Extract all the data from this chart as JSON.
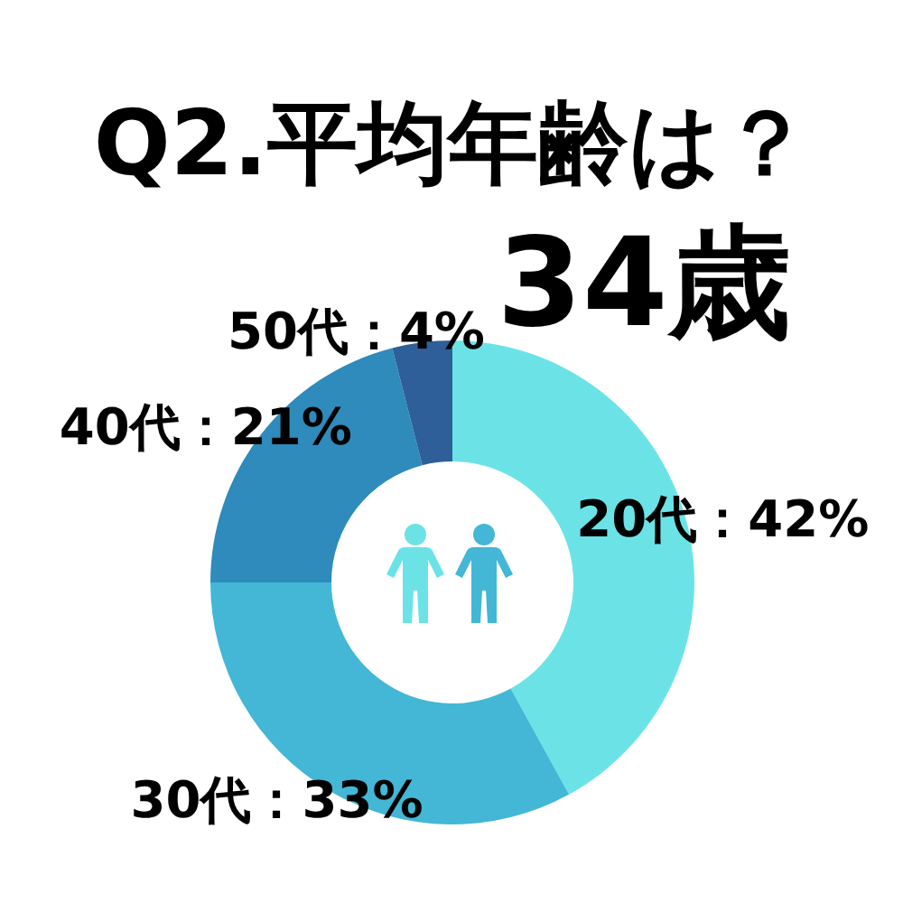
{
  "chart_data": {
    "type": "donut",
    "title": "Q2.平均年齢は？",
    "subtitle": "34歳",
    "categories": [
      "20代",
      "30代",
      "40代",
      "50代"
    ],
    "values": [
      42,
      33,
      21,
      4
    ],
    "colors": [
      "#6be3e6",
      "#43b7d5",
      "#2e8bbb",
      "#2f5f98"
    ],
    "value_labels": [
      "：42%",
      "：33%",
      "：21%",
      "：4%"
    ]
  }
}
